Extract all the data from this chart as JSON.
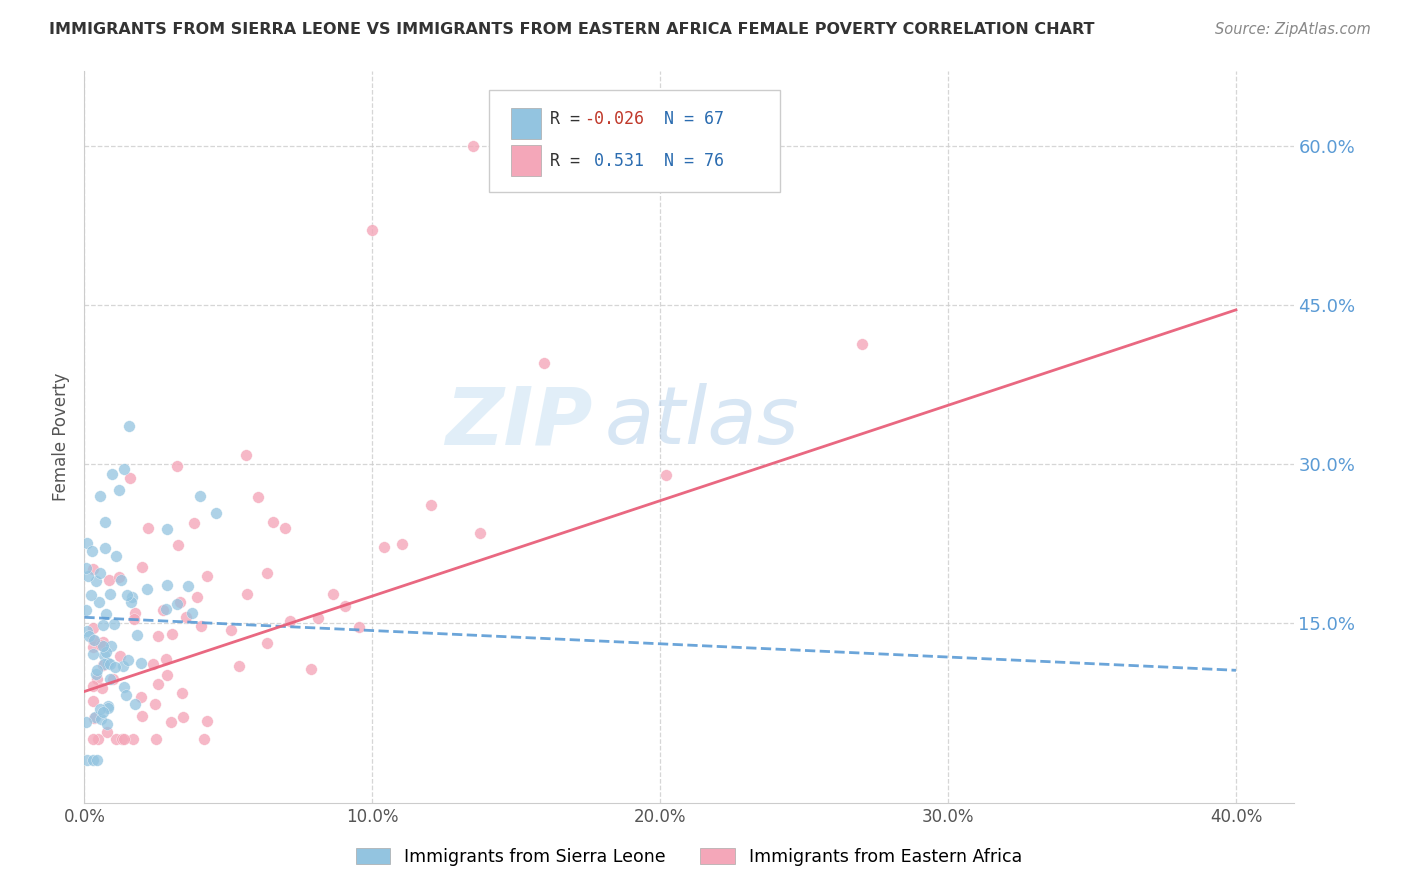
{
  "title": "IMMIGRANTS FROM SIERRA LEONE VS IMMIGRANTS FROM EASTERN AFRICA FEMALE POVERTY CORRELATION CHART",
  "source": "Source: ZipAtlas.com",
  "ylabel": "Female Poverty",
  "ytick_vals": [
    0.15,
    0.3,
    0.45,
    0.6
  ],
  "ytick_labels": [
    "15.0%",
    "30.0%",
    "45.0%",
    "60.0%"
  ],
  "xtick_vals": [
    0.0,
    0.1,
    0.2,
    0.3,
    0.4
  ],
  "xtick_labels": [
    "0.0%",
    "10.0%",
    "20.0%",
    "30.0%",
    "40.0%"
  ],
  "xlim": [
    0.0,
    0.42
  ],
  "ylim": [
    -0.02,
    0.67
  ],
  "color_blue": "#93c4e0",
  "color_pink": "#f4a7b9",
  "color_blue_line": "#5b9bd5",
  "color_pink_line": "#e8607a",
  "watermark_zip": "ZIP",
  "watermark_atlas": "atlas",
  "label1": "Immigrants from Sierra Leone",
  "label2": "Immigrants from Eastern Africa",
  "legend_r1": "R = -0.026",
  "legend_n1": "N = 67",
  "legend_r2": "R =  0.531",
  "legend_n2": "N = 76",
  "blue_line_x": [
    0.0,
    0.4
  ],
  "blue_line_y": [
    0.155,
    0.105
  ],
  "pink_line_x": [
    0.0,
    0.4
  ],
  "pink_line_y": [
    0.085,
    0.445
  ]
}
